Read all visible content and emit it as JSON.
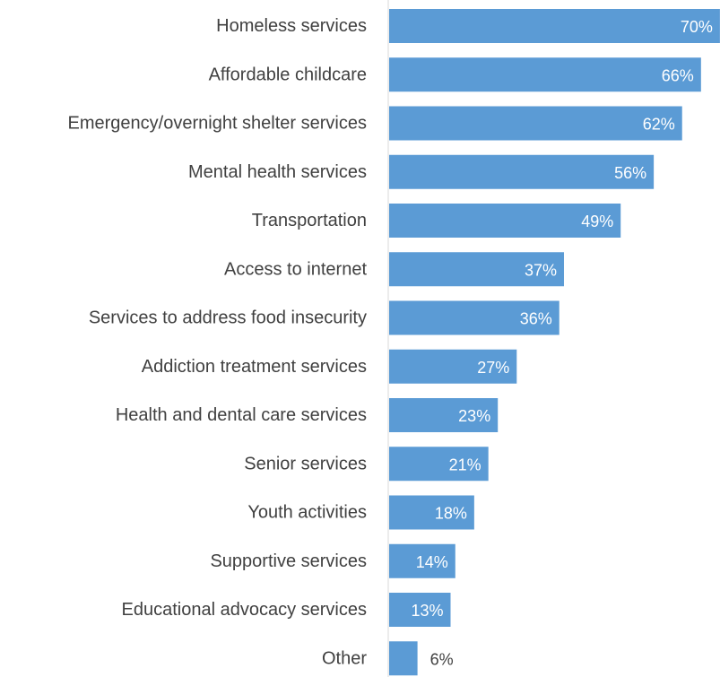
{
  "chart_data": {
    "type": "bar",
    "orientation": "horizontal",
    "title": "",
    "xlabel": "",
    "ylabel": "",
    "value_suffix": "%",
    "xlim": [
      0,
      75
    ],
    "grid": false,
    "legend": "none",
    "categories": [
      "Homeless services",
      "Affordable childcare",
      "Emergency/overnight shelter services",
      "Mental health services",
      "Transportation",
      "Access to internet",
      "Services to address food insecurity",
      "Addiction treatment services",
      "Health and dental care services",
      "Senior services",
      "Youth activities",
      "Supportive services",
      "Educational advocacy services",
      "Other"
    ],
    "values": [
      70,
      66,
      62,
      56,
      49,
      37,
      36,
      27,
      23,
      21,
      18,
      14,
      13,
      6
    ],
    "data_labels": [
      "70%",
      "66%",
      "62%",
      "56%",
      "49%",
      "37%",
      "36%",
      "27%",
      "23%",
      "21%",
      "18%",
      "14%",
      "13%",
      "6%"
    ],
    "colors": {
      "bar": "#5b9bd5",
      "label_inside": "#ffffff",
      "label_outside": "#404040",
      "category_text": "#404040",
      "axis_line": "#d9d9d9"
    }
  }
}
